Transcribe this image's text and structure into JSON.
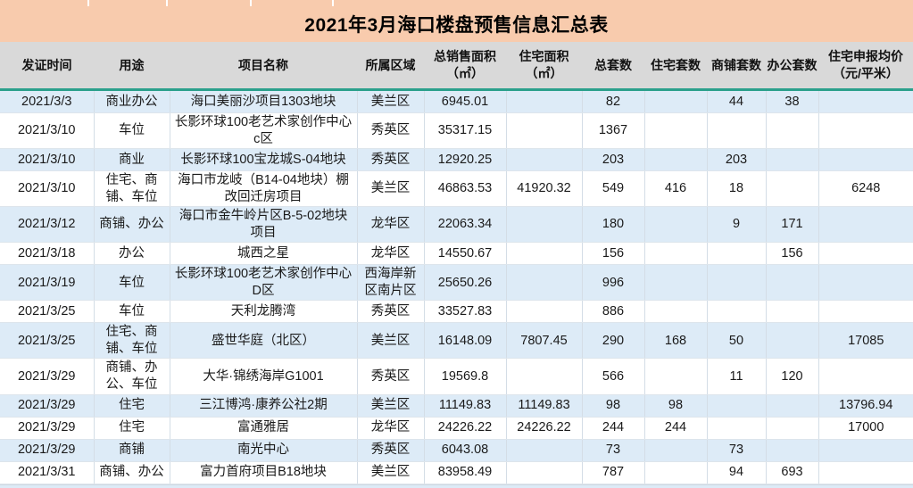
{
  "title": "2021年3月海口楼盘预售信息汇总表",
  "colors": {
    "title_bg": "#F8CBAD",
    "header_bg": "#D9D9D9",
    "alt_row_blue": "#DDEBF7",
    "header_underline_teal": "#2BA08C"
  },
  "columns": [
    "发证时间",
    "用途",
    "项目名称",
    "所属区域",
    "总销售面积\n（㎡）",
    "住宅面积\n（㎡）",
    "总套数",
    "住宅套数",
    "商铺套数",
    "办公套数",
    "住宅申报均价\n（元/平米）"
  ],
  "rows": [
    [
      "2021/3/3",
      "商业办公",
      "海口美丽沙项目1303地块",
      "美兰区",
      "6945.01",
      "",
      "82",
      "",
      "44",
      "38",
      ""
    ],
    [
      "2021/3/10",
      "车位",
      "长影环球100老艺术家创作中心c区",
      "秀英区",
      "35317.15",
      "",
      "1367",
      "",
      "",
      "",
      ""
    ],
    [
      "2021/3/10",
      "商业",
      "长影环球100宝龙城S-04地块",
      "秀英区",
      "12920.25",
      "",
      "203",
      "",
      "203",
      "",
      ""
    ],
    [
      "2021/3/10",
      "住宅、商铺、车位",
      "海口市龙岐（B14-04地块）棚改回迁房项目",
      "美兰区",
      "46863.53",
      "41920.32",
      "549",
      "416",
      "18",
      "",
      "6248"
    ],
    [
      "2021/3/12",
      "商铺、办公",
      "海口市金牛岭片区B-5-02地块项目",
      "龙华区",
      "22063.34",
      "",
      "180",
      "",
      "9",
      "171",
      ""
    ],
    [
      "2021/3/18",
      "办公",
      "城西之星",
      "龙华区",
      "14550.67",
      "",
      "156",
      "",
      "",
      "156",
      ""
    ],
    [
      "2021/3/19",
      "车位",
      "长影环球100老艺术家创作中心D区",
      "西海岸新区南片区",
      "25650.26",
      "",
      "996",
      "",
      "",
      "",
      ""
    ],
    [
      "2021/3/25",
      "车位",
      "天利龙腾湾",
      "秀英区",
      "33527.83",
      "",
      "886",
      "",
      "",
      "",
      ""
    ],
    [
      "2021/3/25",
      "住宅、商铺、车位",
      "盛世华庭（北区）",
      "美兰区",
      "16148.09",
      "7807.45",
      "290",
      "168",
      "50",
      "",
      "17085"
    ],
    [
      "2021/3/29",
      "商铺、办公、车位",
      "大华·锦绣海岸G1001",
      "秀英区",
      "19569.8",
      "",
      "566",
      "",
      "11",
      "120",
      ""
    ],
    [
      "2021/3/29",
      "住宅",
      "三江博鸿·康养公社2期",
      "美兰区",
      "11149.83",
      "11149.83",
      "98",
      "98",
      "",
      "",
      "13796.94"
    ],
    [
      "2021/3/29",
      "住宅",
      "富通雅居",
      "龙华区",
      "24226.22",
      "24226.22",
      "244",
      "244",
      "",
      "",
      "17000"
    ],
    [
      "2021/3/29",
      "商铺",
      "南光中心",
      "秀英区",
      "6043.08",
      "",
      "73",
      "",
      "73",
      "",
      ""
    ],
    [
      "2021/3/31",
      "商铺、办公",
      "富力首府项目B18地块",
      "美兰区",
      "83958.49",
      "",
      "787",
      "",
      "94",
      "693",
      ""
    ]
  ]
}
